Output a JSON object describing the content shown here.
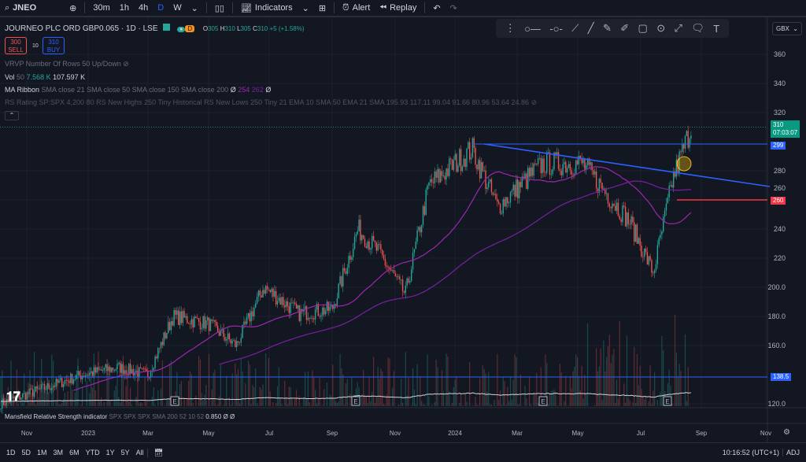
{
  "toolbar": {
    "symbol": "JNEO",
    "intervals": [
      "30m",
      "1h",
      "4h",
      "D",
      "W"
    ],
    "indicators": "Indicators",
    "alert": "Alert",
    "replay": "Replay"
  },
  "header": {
    "title": "JOURNEO PLC ORD GBP0.065 · 1D · LSE",
    "mode": "D",
    "o_label": "O",
    "o": "305",
    "h_label": "H",
    "h": "310",
    "l_label": "L",
    "l": "305",
    "c_label": "C",
    "c": "310",
    "change": "+5 (+1.58%)"
  },
  "trade": {
    "sell_price": "300",
    "sell_label": "SELL",
    "spread": "10",
    "buy_price": "310",
    "buy_label": "BUY"
  },
  "indicators": {
    "vrvp": "VRVP Number Of Rows 50 Up/Down",
    "vol_name": "Vol",
    "vol_len": "50",
    "vol_a": "7.568 K",
    "vol_b": "107.597 K",
    "ma_name": "MA Ribbon",
    "ma_params": "SMA close 21 SMA close 50 SMA close 150 SMA close 200",
    "ma_v1": "Ø",
    "ma_v2": "254",
    "ma_v3": "262",
    "ma_v4": "Ø",
    "rs": "RS Rating SP:SPX 4,200 80 RS New Highs 250 Tiny Historical RS New Lows 250 Tiny 21 EMA 10 SMA 50 EMA 21 SMA 195.93 117.11 99.04 91.66 80.96 53.64 24.86",
    "mansfield_name": "Mansfield Relative Strength indicator",
    "mansfield_params": "SPX SPX SPX SMA 200 52 10 52",
    "mansfield_val": "0.850",
    "mansfield_rest": "Ø Ø"
  },
  "currency": "GBX",
  "price_axis": [
    "360",
    "340",
    "320",
    "280",
    "260",
    "240",
    "220",
    "200.0",
    "180.0",
    "160.0",
    "120.0"
  ],
  "price_labels": {
    "last": "310",
    "countdown": "07:03:07",
    "resistance": "299",
    "support": "260",
    "low_line": "138.5"
  },
  "time_axis": [
    "Nov",
    "2023",
    "Mar",
    "May",
    "Jul",
    "Sep",
    "Nov",
    "2024",
    "Mar",
    "May",
    "Jul",
    "Sep",
    "Nov"
  ],
  "ranges": [
    "1D",
    "5D",
    "1M",
    "3M",
    "6M",
    "YTD",
    "1Y",
    "5Y",
    "All"
  ],
  "clock": "10:16:52 (UTC+1)",
  "adj": "ADJ",
  "earnings_marker": "E",
  "colors": {
    "up": "#26a69a",
    "down": "#ef5350",
    "accent": "#2962ff"
  },
  "chart_data": {
    "type": "candlestick",
    "ylim": [
      120,
      370
    ],
    "key_closes": [
      [
        "2022-10",
        120
      ],
      [
        "2022-12",
        140
      ],
      [
        "2023-02",
        145
      ],
      [
        "2023-03",
        140
      ],
      [
        "2023-04",
        180
      ],
      [
        "2023-05",
        175
      ],
      [
        "2023-06",
        160
      ],
      [
        "2023-07",
        200
      ],
      [
        "2023-08",
        182
      ],
      [
        "2023-09",
        185
      ],
      [
        "2023-10",
        240
      ],
      [
        "2023-11",
        225
      ],
      [
        "2023-12",
        195
      ],
      [
        "2024-01",
        270
      ],
      [
        "2024-02",
        295
      ],
      [
        "2024-03",
        255
      ],
      [
        "2024-04",
        285
      ],
      [
        "2024-05",
        285
      ],
      [
        "2024-06",
        265
      ],
      [
        "2024-07",
        245
      ],
      [
        "2024-07",
        210
      ],
      [
        "2024-08",
        275
      ],
      [
        "2024-08",
        310
      ]
    ]
  }
}
